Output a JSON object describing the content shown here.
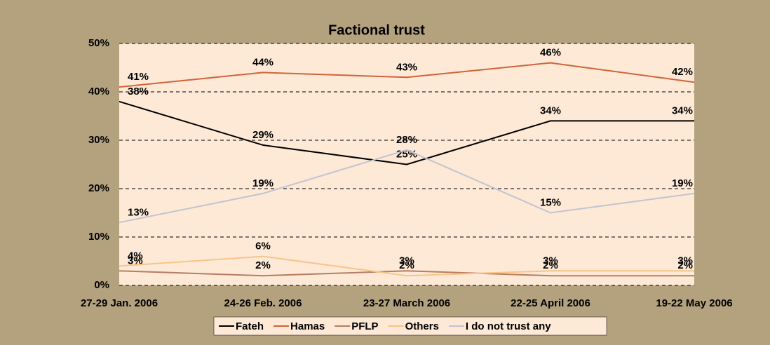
{
  "chart_data": {
    "type": "line",
    "title": "Factional trust",
    "categories": [
      "27-29 Jan. 2006",
      "24-26 Feb. 2006",
      "23-27 March 2006",
      "22-25 April 2006",
      "19-22 May 2006"
    ],
    "series": [
      {
        "name": "Fateh",
        "color": "#000000",
        "values": [
          38,
          29,
          25,
          34,
          34
        ],
        "value_labels": [
          "38%",
          "29%",
          "25%",
          "34%",
          "34%"
        ]
      },
      {
        "name": "Hamas",
        "color": "#d0643a",
        "values": [
          41,
          44,
          43,
          46,
          42
        ],
        "value_labels": [
          "41%",
          "44%",
          "43%",
          "46%",
          "42%"
        ]
      },
      {
        "name": "PFLP",
        "color": "#b57d62",
        "values": [
          3,
          2,
          3,
          2,
          2
        ],
        "value_labels": [
          "3%",
          "2%",
          "3%",
          "2%",
          "2%"
        ]
      },
      {
        "name": "Others",
        "color": "#f8c488",
        "values": [
          4,
          6,
          2,
          3,
          3
        ],
        "value_labels": [
          "4%",
          "6%",
          "2%",
          "3%",
          "3%"
        ]
      },
      {
        "name": "I do not trust any",
        "color": "#c2c4d2",
        "values": [
          13,
          19,
          28,
          15,
          19
        ],
        "value_labels": [
          "13%",
          "19%",
          "28%",
          "15%",
          "19%"
        ]
      }
    ],
    "ylim": [
      0,
      50
    ],
    "yticks": [
      {
        "value": 0,
        "label": "0%"
      },
      {
        "value": 10,
        "label": "10%"
      },
      {
        "value": 20,
        "label": "20%"
      },
      {
        "value": 30,
        "label": "30%"
      },
      {
        "value": 40,
        "label": "40%"
      },
      {
        "value": 50,
        "label": "50%"
      }
    ],
    "grid": true,
    "legend": "bottom"
  }
}
